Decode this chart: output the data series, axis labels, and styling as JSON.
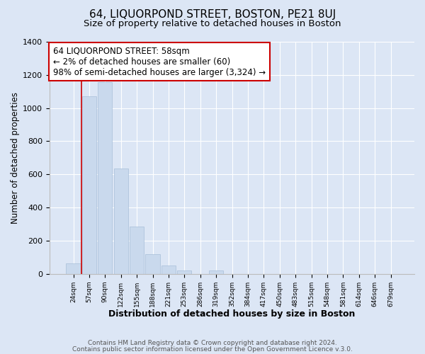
{
  "title": "64, LIQUORPOND STREET, BOSTON, PE21 8UJ",
  "subtitle": "Size of property relative to detached houses in Boston",
  "xlabel": "Distribution of detached houses by size in Boston",
  "ylabel": "Number of detached properties",
  "categories": [
    "24sqm",
    "57sqm",
    "90sqm",
    "122sqm",
    "155sqm",
    "188sqm",
    "221sqm",
    "253sqm",
    "286sqm",
    "319sqm",
    "352sqm",
    "384sqm",
    "417sqm",
    "450sqm",
    "483sqm",
    "515sqm",
    "548sqm",
    "581sqm",
    "614sqm",
    "646sqm",
    "679sqm"
  ],
  "values": [
    65,
    1070,
    1155,
    635,
    285,
    120,
    48,
    22,
    0,
    22,
    0,
    0,
    0,
    0,
    0,
    0,
    0,
    0,
    0,
    0,
    0
  ],
  "bar_color": "#c9d9ed",
  "bar_edge_color": "#a8bfd8",
  "vline_x_index": 1,
  "vline_color": "#cc0000",
  "annotation_line1": "64 LIQUORPOND STREET: 58sqm",
  "annotation_line2": "← 2% of detached houses are smaller (60)",
  "annotation_line3": "98% of semi-detached houses are larger (3,324) →",
  "annotation_box_edgecolor": "#cc0000",
  "annotation_box_facecolor": "#ffffff",
  "ylim": [
    0,
    1400
  ],
  "yticks": [
    0,
    200,
    400,
    600,
    800,
    1000,
    1200,
    1400
  ],
  "background_color": "#dce6f5",
  "plot_bg_color": "#dce6f5",
  "footer_line1": "Contains HM Land Registry data © Crown copyright and database right 2024.",
  "footer_line2": "Contains public sector information licensed under the Open Government Licence v.3.0.",
  "title_fontsize": 11,
  "subtitle_fontsize": 9.5,
  "xlabel_fontsize": 9,
  "ylabel_fontsize": 8.5,
  "annotation_fontsize": 8.5
}
